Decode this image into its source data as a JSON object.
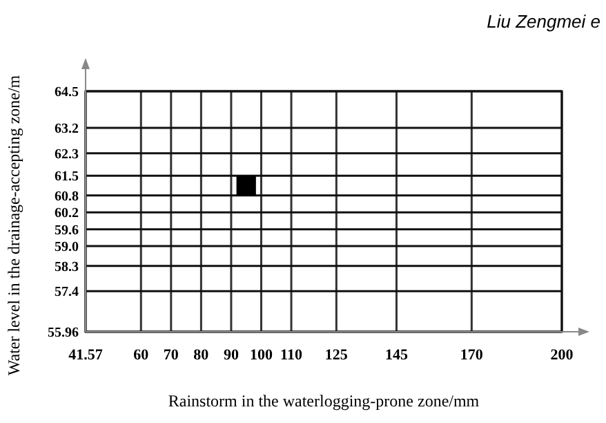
{
  "chart_data": {
    "type": "scatter",
    "xlabel": "Rainstorm in the waterlogging-prone zone/mm",
    "ylabel": "Water level in the drainage-accepting zone/m",
    "annotations": [
      "Liu Zengmei e"
    ],
    "x": [
      95
    ],
    "series": [
      {
        "color": "#000000",
        "values": [
          61.15
        ]
      }
    ],
    "marker": "square",
    "xlim": [
      41.57,
      200
    ],
    "xticks": [
      41.57,
      60,
      70,
      80,
      90,
      100,
      110,
      125,
      145,
      170,
      200
    ],
    "ylim": [
      55.96,
      64.5
    ],
    "yticks": [
      55.96,
      57.4,
      58.3,
      {
        "value": 59,
        "label": "59.0"
      },
      59.6,
      60.2,
      60.8,
      61.5,
      62.3,
      63.2,
      64.5
    ],
    "grid": true
  }
}
